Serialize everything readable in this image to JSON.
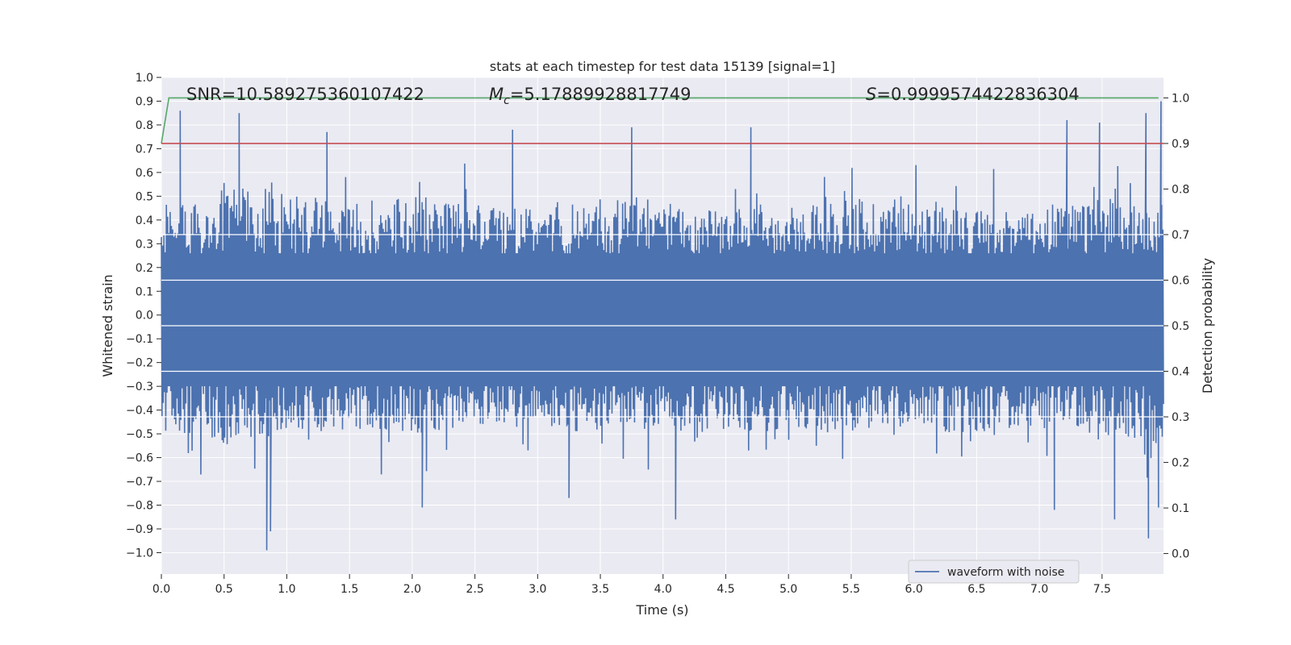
{
  "chart_data": {
    "type": "line",
    "title": "stats at each timestep for test data 15139 [signal=1]",
    "xlabel": "Time (s)",
    "ylabel": "Whitened strain",
    "y2label": "Detection probability",
    "xlim": [
      0.0,
      7.99
    ],
    "ylim": [
      -1.09,
      1.0
    ],
    "y2lim": [
      -0.045,
      1.045
    ],
    "x_ticks": [
      0.0,
      0.5,
      1.0,
      1.5,
      2.0,
      2.5,
      3.0,
      3.5,
      4.0,
      4.5,
      5.0,
      5.5,
      6.0,
      6.5,
      7.0,
      7.5
    ],
    "y_ticks": [
      -1.0,
      -0.9,
      -0.8,
      -0.7,
      -0.6,
      -0.5,
      -0.4,
      -0.3,
      -0.2,
      -0.1,
      0.0,
      0.1,
      0.2,
      0.3,
      0.4,
      0.5,
      0.6,
      0.7,
      0.8,
      0.9,
      1.0
    ],
    "y2_ticks": [
      0.0,
      0.1,
      0.2,
      0.3,
      0.4,
      0.5,
      0.6,
      0.7,
      0.8,
      0.9,
      1.0
    ],
    "grid": true,
    "legend": {
      "position": "lower-right",
      "entries": [
        "waveform with noise"
      ]
    },
    "annotations": {
      "snr": "SNR=10.589275360107422",
      "mc_prefix": "M",
      "mc_sub": "c",
      "mc_value": "=5.17889928817749",
      "s_prefix": "S",
      "s_value": "=0.9999574422836304"
    },
    "series": [
      {
        "name": "waveform with noise",
        "axis": "left",
        "color": "#4c72b0",
        "description_type": "noise-band",
        "samples": 1600,
        "envelope_top": [
          0.45,
          0.55,
          0.5,
          0.48,
          0.5,
          0.45,
          0.47,
          0.5,
          0.46,
          0.45,
          0.48,
          0.5,
          0.44,
          0.45,
          0.5,
          0.47
        ],
        "envelope_bottom": [
          -0.5,
          -0.55,
          -0.5,
          -0.48,
          -0.5,
          -0.45,
          -0.5,
          -0.47,
          -0.48,
          -0.5,
          -0.5,
          -0.47,
          -0.5,
          -0.47,
          -0.5,
          -0.55
        ],
        "peaks": [
          {
            "x": 0.15,
            "y": 0.86
          },
          {
            "x": 0.62,
            "y": 0.85
          },
          {
            "x": 1.32,
            "y": 0.77
          },
          {
            "x": 2.8,
            "y": 0.78
          },
          {
            "x": 3.75,
            "y": 0.79
          },
          {
            "x": 4.7,
            "y": 0.79
          },
          {
            "x": 7.22,
            "y": 0.82
          },
          {
            "x": 7.48,
            "y": 0.81
          },
          {
            "x": 7.85,
            "y": 0.85
          },
          {
            "x": 7.97,
            "y": 0.9
          }
        ],
        "troughs": [
          {
            "x": 0.84,
            "y": -0.99
          },
          {
            "x": 0.87,
            "y": -0.91
          },
          {
            "x": 2.08,
            "y": -0.81
          },
          {
            "x": 3.25,
            "y": -0.77
          },
          {
            "x": 4.1,
            "y": -0.86
          },
          {
            "x": 7.12,
            "y": -0.82
          },
          {
            "x": 7.6,
            "y": -0.86
          },
          {
            "x": 7.87,
            "y": -0.94
          },
          {
            "x": 7.95,
            "y": -0.81
          }
        ]
      },
      {
        "name": "detection probability",
        "axis": "right",
        "color": "#55a868",
        "x": [
          0.0,
          0.06,
          7.95
        ],
        "y": [
          0.9,
          1.0,
          1.0
        ]
      },
      {
        "name": "threshold",
        "axis": "right",
        "color": "#c44e52",
        "x": [
          0.0,
          7.99
        ],
        "y": [
          0.9,
          0.9
        ]
      }
    ]
  }
}
